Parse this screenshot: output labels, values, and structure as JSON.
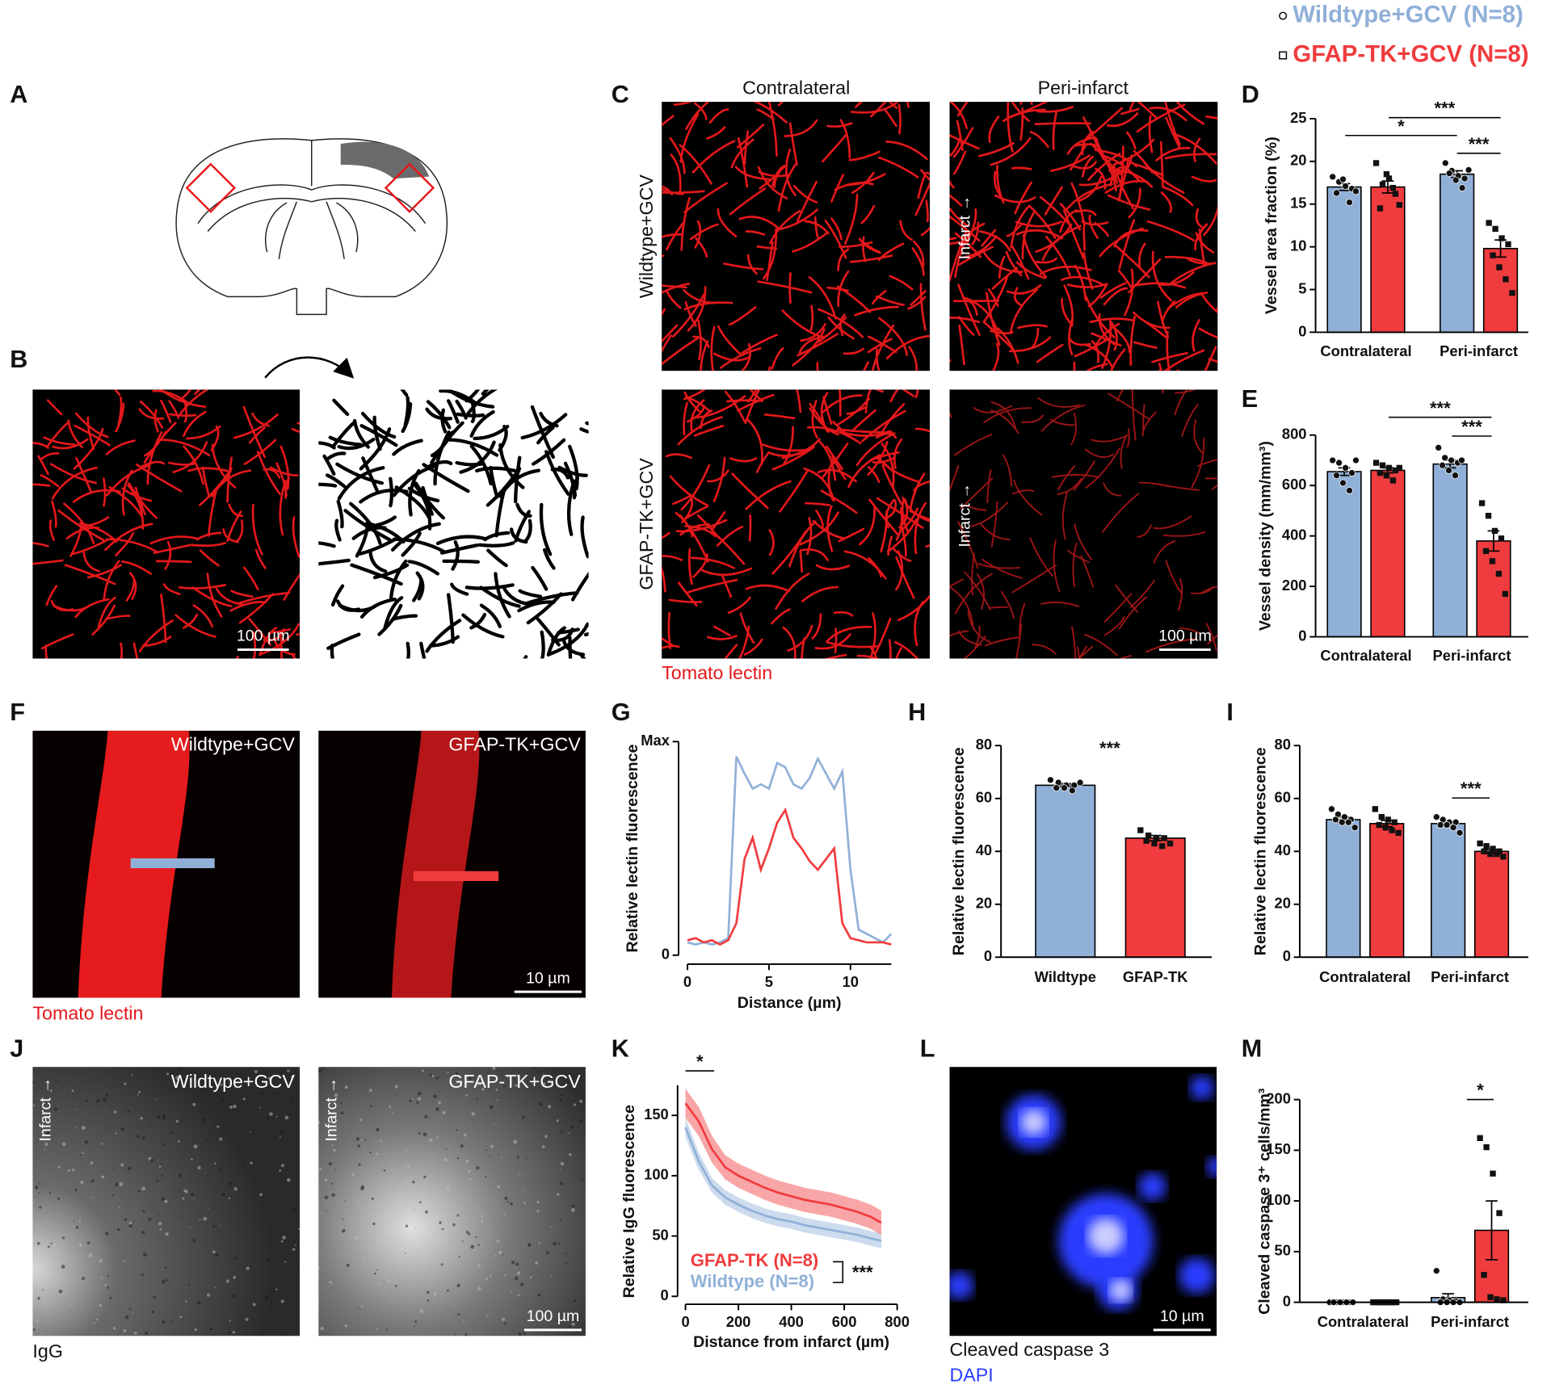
{
  "legend": [
    {
      "label": "Wildtype+GCV (N=8)",
      "color": "#90b0d8"
    },
    {
      "label": "GFAP-TK+GCV (N=8)",
      "color": "#f03c3e"
    }
  ],
  "panel_letters": [
    "A",
    "B",
    "C",
    "D",
    "E",
    "F",
    "G",
    "H",
    "I",
    "J",
    "K",
    "L",
    "M"
  ],
  "panel_B": {
    "scale_bar": "100 µm"
  },
  "panel_C": {
    "columns": [
      "Contralateral",
      "Peri-infarct"
    ],
    "rows": [
      "Wildtype+GCV",
      "GFAP-TK+GCV"
    ],
    "infarct": [
      "Infarct →",
      "Infarct →"
    ],
    "scale_bar": "100 µm",
    "stain": "Tomato lectin"
  },
  "panel_F": {
    "labels": [
      "Wildtype+GCV",
      "GFAP-TK+GCV"
    ],
    "scale_bar": "10 µm",
    "stain": "Tomato lectin"
  },
  "panel_J": {
    "labels": [
      "Wildtype+GCV",
      "GFAP-TK+GCV"
    ],
    "infarct": [
      "Infarct →",
      "Infarct →"
    ],
    "scale_bar": "100 µm",
    "stain": "IgG"
  },
  "panel_L": {
    "scale_bar": "10 µm",
    "stains": [
      "Cleaved caspase 3",
      "DAPI"
    ]
  },
  "chart_data": [
    {
      "type": "grouped_bar",
      "y_label": "Vessel area fraction (%)",
      "categories": [
        "Contralateral",
        "Peri-infarct"
      ],
      "ylim": [
        0,
        25
      ],
      "yticks": [
        0,
        5,
        10,
        15,
        20,
        25
      ],
      "series": [
        {
          "color": "#90b0d8",
          "marker": "circle",
          "values": [
            17,
            18.5
          ],
          "errors": [
            0.4,
            0.4
          ],
          "points": [
            [
              18.2,
              17.6,
              17.1,
              16.8,
              16.3,
              17.9,
              15.2,
              16.5
            ],
            [
              19.8,
              18.9,
              18.3,
              18.0,
              18.6,
              17.8,
              16.9,
              19.0
            ]
          ]
        },
        {
          "color": "#f03c3e",
          "marker": "square",
          "values": [
            17,
            9.8
          ],
          "errors": [
            0.7,
            1.0
          ],
          "points": [
            [
              19.8,
              17.3,
              18.0,
              16.2,
              14.5,
              18.5,
              16.9,
              14.9
            ],
            [
              12.8,
              12.1,
              11.0,
              10.3,
              9.0,
              7.6,
              6.2,
              4.6
            ]
          ]
        }
      ],
      "annotations": [
        "*",
        "***",
        "***"
      ]
    },
    {
      "type": "grouped_bar",
      "y_label": "Vessel density (mm/mm³)",
      "categories": [
        "Contralateral",
        "Peri-infarct"
      ],
      "ylim": [
        0,
        800
      ],
      "yticks": [
        0,
        200,
        400,
        600,
        800
      ],
      "series": [
        {
          "color": "#90b0d8",
          "marker": "circle",
          "values": [
            655,
            685
          ],
          "errors": [
            15,
            15
          ],
          "points": [
            [
              700,
              690,
              670,
              650,
              640,
              610,
              580,
              700
            ],
            [
              750,
              710,
              700,
              690,
              680,
              660,
              640,
              700
            ]
          ]
        },
        {
          "color": "#f03c3e",
          "marker": "square",
          "values": [
            660,
            380
          ],
          "errors": [
            10,
            40
          ],
          "points": [
            [
              690,
              680,
              670,
              660,
              650,
              640,
              620,
              670
            ],
            [
              530,
              480,
              420,
              390,
              340,
              300,
              250,
              170
            ]
          ]
        }
      ],
      "annotations": [
        "***",
        "***"
      ]
    },
    {
      "type": "line",
      "y_label": "Relative lectin fluorescence",
      "x_label": "Distance (µm)",
      "xlim": [
        0,
        12.5
      ],
      "xticks": [
        0,
        5,
        10
      ],
      "ylim": [
        0,
        1
      ],
      "yticks": [
        0,
        {
          "value": 1,
          "label": "Max"
        }
      ],
      "x": [
        0,
        0.5,
        1,
        1.5,
        2,
        2.5,
        3,
        3.5,
        4,
        4.5,
        5,
        5.5,
        6,
        6.5,
        7,
        7.5,
        8,
        8.5,
        9,
        9.5,
        10,
        10.5,
        11,
        11.5,
        12,
        12.5
      ],
      "series": [
        {
          "color": "#90b0d8",
          "values": [
            0.06,
            0.05,
            0.06,
            0.05,
            0.06,
            0.08,
            0.93,
            0.85,
            0.78,
            0.8,
            0.78,
            0.9,
            0.88,
            0.8,
            0.78,
            0.83,
            0.92,
            0.85,
            0.78,
            0.86,
            0.4,
            0.12,
            0.1,
            0.08,
            0.06,
            0.1
          ]
        },
        {
          "color": "#f03c3e",
          "values": [
            0.07,
            0.08,
            0.06,
            0.07,
            0.05,
            0.07,
            0.15,
            0.45,
            0.55,
            0.4,
            0.5,
            0.62,
            0.68,
            0.55,
            0.5,
            0.44,
            0.4,
            0.45,
            0.5,
            0.15,
            0.08,
            0.07,
            0.06,
            0.06,
            0.06,
            0.05
          ]
        }
      ]
    },
    {
      "type": "bar",
      "y_label": "Relative lectin fluorescence",
      "categories": [
        "Wildtype",
        "GFAP-TK"
      ],
      "ylim": [
        0,
        80
      ],
      "yticks": [
        0,
        20,
        40,
        60,
        80
      ],
      "values": [
        65,
        45
      ],
      "errors": [
        0.6,
        1.0
      ],
      "colors": [
        "#90b0d8",
        "#f03c3e"
      ],
      "markers": [
        "circle",
        "square"
      ],
      "points": [
        [
          67,
          66,
          65,
          65,
          64,
          64,
          63,
          66
        ],
        [
          48,
          46,
          45,
          45,
          44,
          43,
          42,
          43
        ]
      ],
      "annotations": [
        "***"
      ]
    },
    {
      "type": "grouped_bar",
      "y_label": "Relative lectin fluorescence",
      "categories": [
        "Contralateral",
        "Peri-infarct"
      ],
      "ylim": [
        0,
        80
      ],
      "yticks": [
        0,
        20,
        40,
        60,
        80
      ],
      "series": [
        {
          "color": "#90b0d8",
          "marker": "circle",
          "values": [
            52,
            50.5
          ],
          "errors": [
            1.0,
            0.8
          ],
          "points": [
            [
              56,
              54,
              53,
              52,
              52,
              51,
              51,
              49
            ],
            [
              53,
              52,
              51,
              51,
              50,
              50,
              49,
              47
            ]
          ]
        },
        {
          "color": "#f03c3e",
          "marker": "square",
          "values": [
            50.5,
            40
          ],
          "errors": [
            1.2,
            0.7
          ],
          "points": [
            [
              56,
              53,
              52,
              51,
              50,
              49,
              48,
              47
            ],
            [
              43,
              42,
              41,
              40,
              40,
              39,
              39,
              38
            ]
          ]
        }
      ],
      "annotations": [
        "***"
      ]
    },
    {
      "type": "band_line",
      "y_label": "Relative IgG fluorescence",
      "x_label": "Distance from infarct (µm)",
      "xlim": [
        0,
        800
      ],
      "xticks": [
        0,
        200,
        400,
        600,
        800
      ],
      "ylim": [
        0,
        175
      ],
      "yticks": [
        0,
        50,
        100,
        150
      ],
      "x": [
        0,
        50,
        100,
        150,
        200,
        250,
        300,
        350,
        400,
        450,
        500,
        550,
        600,
        650,
        700,
        740
      ],
      "series": [
        {
          "name": "GFAP-TK (N=8)",
          "color": "#f03c3e",
          "values": [
            160,
            145,
            122,
            107,
            100,
            95,
            90,
            86,
            83,
            80,
            78,
            76,
            73,
            70,
            66,
            61
          ],
          "errors": [
            12,
            12,
            11,
            10,
            10,
            10,
            10,
            10,
            10,
            10,
            10,
            10,
            10,
            10,
            10,
            10
          ]
        },
        {
          "name": "Wildtype (N=8)",
          "color": "#90b0d8",
          "values": [
            140,
            112,
            92,
            82,
            76,
            71,
            67,
            64,
            62,
            59,
            57,
            55,
            53,
            51,
            48,
            46
          ],
          "errors": [
            8,
            7,
            6,
            6,
            6,
            6,
            6,
            6,
            6,
            6,
            6,
            6,
            6,
            6,
            6,
            6
          ]
        }
      ],
      "annotations": [
        "*",
        "***"
      ]
    },
    {
      "type": "grouped_bar",
      "y_label": "Cleaved caspase 3⁺ cells/mm³",
      "categories": [
        "Contralateral",
        "Peri-infarct"
      ],
      "ylim": [
        0,
        200
      ],
      "yticks": [
        0,
        50,
        100,
        150,
        200
      ],
      "series": [
        {
          "color": "#90b0d8",
          "marker": "circle",
          "values": [
            0,
            4.6
          ],
          "errors": [
            0,
            3.8
          ],
          "points": [
            [
              0,
              0,
              0,
              0,
              0,
              0,
              0,
              0
            ],
            [
              31,
              3,
              2,
              1,
              0,
              0,
              0,
              0
            ]
          ]
        },
        {
          "color": "#f03c3e",
          "marker": "square",
          "values": [
            0,
            71
          ],
          "errors": [
            0,
            29
          ],
          "points": [
            [
              0,
              0,
              0,
              0,
              0,
              0,
              0,
              0
            ],
            [
              162,
              153,
              127,
              88,
              27,
              5,
              3,
              2
            ]
          ]
        }
      ],
      "annotations": [
        "*"
      ]
    }
  ]
}
